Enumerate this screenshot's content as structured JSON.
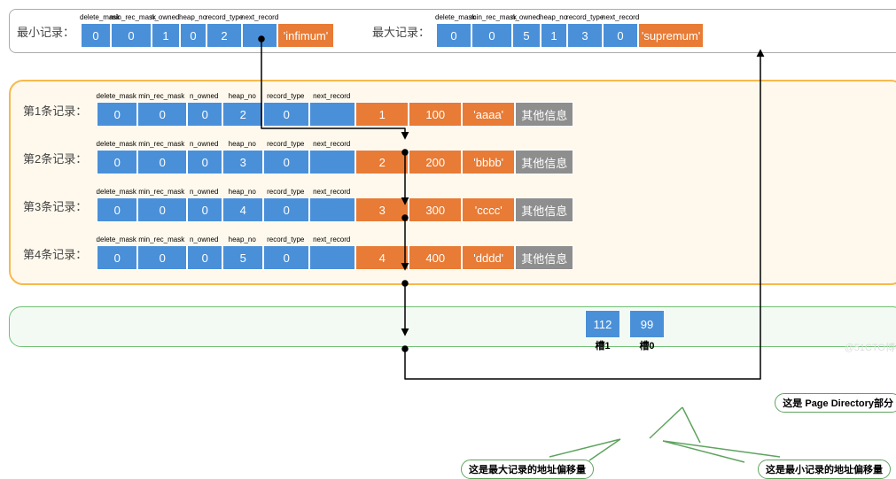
{
  "colors": {
    "blue": "#4a90d9",
    "orange": "#e87b35",
    "gray": "#8e8e8e",
    "greenBorder": "#6fbf73",
    "orangeBorder": "#f6b94d"
  },
  "headerLabels": [
    "delete_mask",
    "min_rec_mask",
    "n_owned",
    "heap_no",
    "record_type",
    "next_record"
  ],
  "topBox": {
    "min": {
      "label": "最小记录：",
      "values": [
        "0",
        "0",
        "1",
        "0",
        "2",
        ""
      ],
      "tag": "'infimum'"
    },
    "max": {
      "label": "最大记录：",
      "values": [
        "0",
        "0",
        "5",
        "1",
        "3",
        "0"
      ],
      "tag": "'supremum'"
    }
  },
  "records": [
    {
      "label": "第1条记录：",
      "hdr": [
        "0",
        "0",
        "0",
        "2",
        "0",
        ""
      ],
      "data": [
        "1",
        "100",
        "'aaaa'"
      ],
      "extra": "其他信息"
    },
    {
      "label": "第2条记录：",
      "hdr": [
        "0",
        "0",
        "0",
        "3",
        "0",
        ""
      ],
      "data": [
        "2",
        "200",
        "'bbbb'"
      ],
      "extra": "其他信息"
    },
    {
      "label": "第3条记录：",
      "hdr": [
        "0",
        "0",
        "0",
        "4",
        "0",
        ""
      ],
      "data": [
        "3",
        "300",
        "'cccc'"
      ],
      "extra": "其他信息"
    },
    {
      "label": "第4条记录：",
      "hdr": [
        "0",
        "0",
        "0",
        "5",
        "0",
        ""
      ],
      "data": [
        "4",
        "400",
        "'dddd'"
      ],
      "extra": "其他信息"
    }
  ],
  "slots": [
    {
      "val": "112",
      "lab": "槽1"
    },
    {
      "val": "99",
      "lab": "槽0"
    }
  ],
  "bubbles": {
    "pd": "这是 Page Directory部分",
    "maxOff": "这是最大记录的地址偏移量",
    "minOff": "这是最小记录的地址偏移量"
  },
  "watermark": "@51CTO博客",
  "layout": {
    "headerWidths": [
      42,
      46,
      34,
      34,
      42,
      42
    ],
    "recHeaderWidths": [
      46,
      56,
      40,
      46,
      52,
      52
    ],
    "cellW": 44,
    "dataW": 60,
    "tagW": 70
  }
}
